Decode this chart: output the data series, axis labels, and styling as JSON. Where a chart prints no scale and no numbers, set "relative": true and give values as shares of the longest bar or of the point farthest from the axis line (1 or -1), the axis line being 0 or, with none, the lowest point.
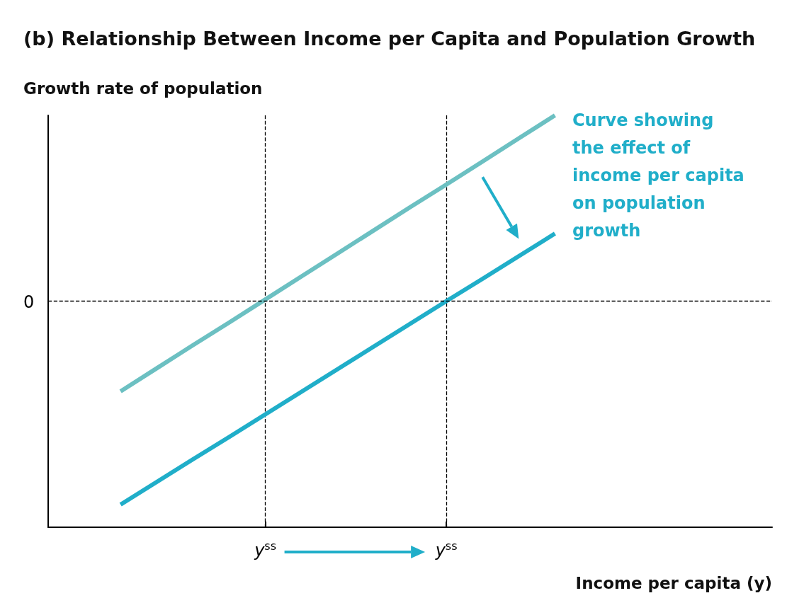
{
  "chart_data": {
    "type": "line",
    "title": "(b) Relationship Between Income per Capita and Population Growth",
    "ylabel": "Growth rate of population",
    "xlabel": "Income per capita (y)",
    "relative": true,
    "categories": [
      null,
      null,
      null,
      null,
      null,
      null,
      "y$^{ss}$",
      null,
      null,
      null,
      null,
      "y$^{ss}$",
      null,
      null,
      null,
      null,
      null,
      null,
      null,
      null,
      null
    ],
    "series": [
      {
        "color": "#6cc0c2",
        "values": [
          null,
          null,
          0.33,
          0.386,
          0.442,
          0.497,
          0.553,
          0.609,
          0.665,
          0.721,
          0.777,
          0.832,
          0.888,
          0.944,
          1.0,
          null,
          null,
          null,
          null,
          null,
          null
        ]
      },
      {
        "color": "#20aec9",
        "values": [
          null,
          null,
          0.055,
          0.11,
          0.165,
          0.219,
          0.274,
          0.329,
          0.384,
          0.439,
          0.494,
          0.549,
          0.603,
          0.658,
          0.713,
          null,
          null,
          null,
          null,
          null,
          null
        ]
      }
    ],
    "ref_lines": [
      {
        "axis": "y",
        "value": 0.545,
        "line_style": "dashed",
        "color": "#000000"
      }
    ],
    "annotations": [
      "0",
      "Curve showing\nthe effect of\nincome per capita\non population\ngrowth"
    ],
    "grid": "x",
    "marker": "none",
    "line_style": "solid"
  }
}
